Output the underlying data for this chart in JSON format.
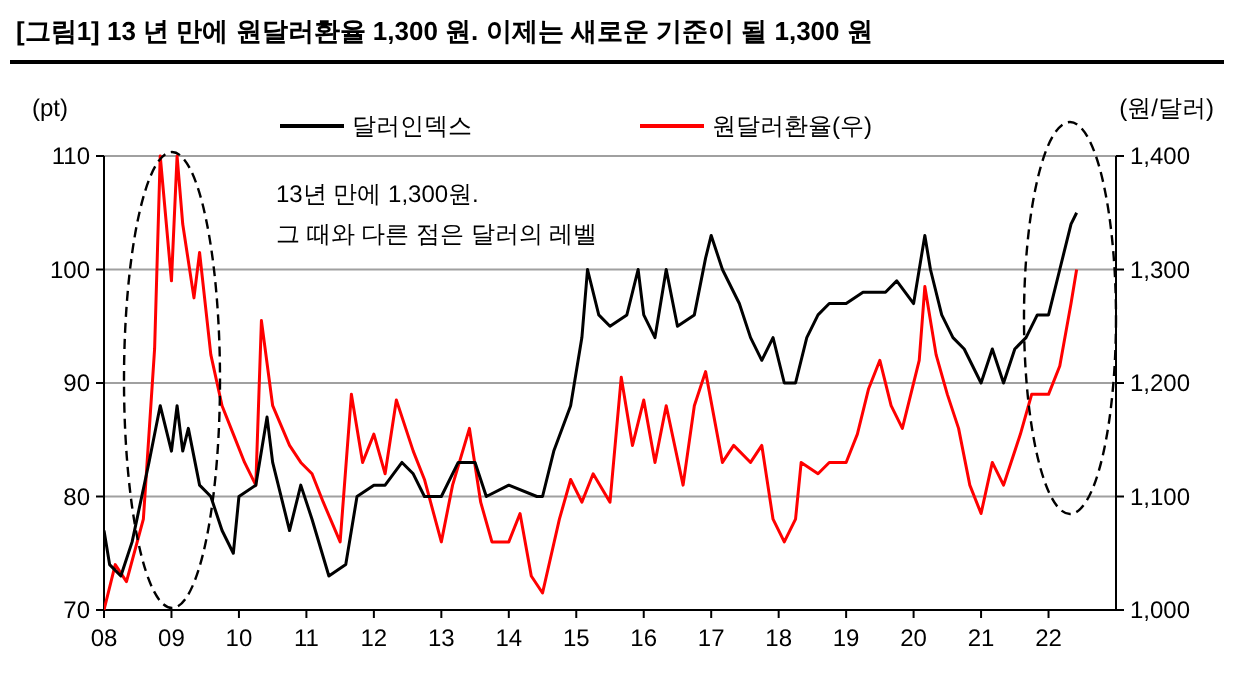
{
  "chart_data": {
    "type": "line",
    "title": "[그림1] 13 년 만에 원달러환율 1,300 원. 이제는 새로운 기준이 될 1,300 원",
    "ylabel": "(pt)",
    "y2label": "(원/달러)",
    "annotations": [
      "13년 만에 1,300원.\n그 때와 다른 점은 달러의 레벨"
    ],
    "xlim": [
      "2008-01",
      "2023-01"
    ],
    "xticks": [
      {
        "value": "2008-01",
        "label": "08"
      },
      {
        "value": "2009-01",
        "label": "09"
      },
      {
        "value": "2010-01",
        "label": "10"
      },
      {
        "value": "2011-01",
        "label": "11"
      },
      {
        "value": "2012-01",
        "label": "12"
      },
      {
        "value": "2013-01",
        "label": "13"
      },
      {
        "value": "2014-01",
        "label": "14"
      },
      {
        "value": "2015-01",
        "label": "15"
      },
      {
        "value": "2016-01",
        "label": "16"
      },
      {
        "value": "2017-01",
        "label": "17"
      },
      {
        "value": "2018-01",
        "label": "18"
      },
      {
        "value": "2019-01",
        "label": "19"
      },
      {
        "value": "2020-01",
        "label": "20"
      },
      {
        "value": "2021-01",
        "label": "21"
      },
      {
        "value": "2022-01",
        "label": "22"
      }
    ],
    "ylim": [
      70,
      110
    ],
    "yticks": [
      70,
      80,
      90,
      100,
      110
    ],
    "y2lim": [
      1000,
      1400
    ],
    "y2ticks": [
      {
        "value": 1000,
        "label": "1,000"
      },
      {
        "value": 1100,
        "label": "1,100"
      },
      {
        "value": 1200,
        "label": "1,200"
      },
      {
        "value": 1300,
        "label": "1,300"
      },
      {
        "value": 1400,
        "label": "1,400"
      }
    ],
    "grid": "y",
    "legend": "top",
    "line_style": "solid",
    "series": [
      {
        "name": "달러인덱스",
        "color": "#000000",
        "x": [
          "2008-01",
          "2008-02",
          "2008-04",
          "2008-06",
          "2008-09",
          "2008-11",
          "2009-01",
          "2009-02",
          "2009-03",
          "2009-04",
          "2009-06",
          "2009-08",
          "2009-10",
          "2009-12",
          "2010-01",
          "2010-04",
          "2010-06",
          "2010-07",
          "2010-10",
          "2010-12",
          "2011-02",
          "2011-05",
          "2011-08",
          "2011-10",
          "2012-01",
          "2012-03",
          "2012-06",
          "2012-08",
          "2012-10",
          "2013-01",
          "2013-04",
          "2013-07",
          "2013-09",
          "2014-01",
          "2014-06",
          "2014-07",
          "2014-09",
          "2014-12",
          "2015-02",
          "2015-03",
          "2015-05",
          "2015-07",
          "2015-10",
          "2015-12",
          "2016-01",
          "2016-03",
          "2016-05",
          "2016-07",
          "2016-10",
          "2016-12",
          "2017-01",
          "2017-03",
          "2017-06",
          "2017-08",
          "2017-10",
          "2017-12",
          "2018-02",
          "2018-04",
          "2018-06",
          "2018-08",
          "2018-10",
          "2019-01",
          "2019-04",
          "2019-08",
          "2019-10",
          "2020-01",
          "2020-03",
          "2020-04",
          "2020-06",
          "2020-08",
          "2020-10",
          "2021-01",
          "2021-03",
          "2021-05",
          "2021-07",
          "2021-09",
          "2021-11",
          "2022-01",
          "2022-03",
          "2022-05",
          "2022-06"
        ],
        "values": [
          77,
          74,
          73,
          76,
          83,
          88,
          84,
          88,
          84,
          86,
          81,
          80,
          77,
          75,
          80,
          81,
          87,
          83,
          77,
          81,
          78,
          73,
          74,
          80,
          81,
          81,
          83,
          82,
          80,
          80,
          83,
          83,
          80,
          81,
          80,
          80,
          84,
          88,
          94,
          100,
          96,
          95,
          96,
          100,
          96,
          94,
          100,
          95,
          96,
          101,
          103,
          100,
          97,
          94,
          92,
          94,
          90,
          90,
          94,
          96,
          97,
          97,
          98,
          98,
          99,
          97,
          103,
          100,
          96,
          94,
          93,
          90,
          93,
          90,
          93,
          94,
          96,
          96,
          100,
          104,
          105
        ]
      },
      {
        "name": "원달러환율(우)",
        "color": "#ff0000",
        "axis": "y2",
        "x": [
          "2008-01",
          "2008-03",
          "2008-05",
          "2008-08",
          "2008-10",
          "2008-11",
          "2009-01",
          "2009-02",
          "2009-03",
          "2009-05",
          "2009-06",
          "2009-08",
          "2009-10",
          "2009-12",
          "2010-02",
          "2010-04",
          "2010-05",
          "2010-07",
          "2010-10",
          "2010-12",
          "2011-02",
          "2011-04",
          "2011-07",
          "2011-09",
          "2011-11",
          "2012-01",
          "2012-03",
          "2012-05",
          "2012-08",
          "2012-10",
          "2013-01",
          "2013-03",
          "2013-06",
          "2013-08",
          "2013-10",
          "2014-01",
          "2014-03",
          "2014-05",
          "2014-07",
          "2014-10",
          "2014-12",
          "2015-02",
          "2015-04",
          "2015-07",
          "2015-09",
          "2015-11",
          "2016-01",
          "2016-03",
          "2016-05",
          "2016-08",
          "2016-10",
          "2016-12",
          "2017-03",
          "2017-05",
          "2017-08",
          "2017-10",
          "2017-12",
          "2018-02",
          "2018-04",
          "2018-05",
          "2018-08",
          "2018-10",
          "2019-01",
          "2019-03",
          "2019-05",
          "2019-07",
          "2019-09",
          "2019-11",
          "2020-02",
          "2020-03",
          "2020-05",
          "2020-07",
          "2020-09",
          "2020-11",
          "2021-01",
          "2021-03",
          "2021-05",
          "2021-08",
          "2021-10",
          "2022-01",
          "2022-03",
          "2022-05",
          "2022-06"
        ],
        "values": [
          1000,
          1040,
          1025,
          1080,
          1230,
          1400,
          1290,
          1400,
          1340,
          1275,
          1315,
          1225,
          1180,
          1155,
          1130,
          1110,
          1255,
          1180,
          1145,
          1130,
          1120,
          1095,
          1060,
          1190,
          1130,
          1155,
          1120,
          1185,
          1140,
          1115,
          1060,
          1110,
          1160,
          1095,
          1060,
          1060,
          1085,
          1030,
          1015,
          1080,
          1115,
          1095,
          1120,
          1095,
          1205,
          1145,
          1185,
          1130,
          1180,
          1110,
          1180,
          1210,
          1130,
          1145,
          1130,
          1145,
          1080,
          1060,
          1080,
          1130,
          1120,
          1130,
          1130,
          1155,
          1195,
          1220,
          1180,
          1160,
          1220,
          1285,
          1225,
          1190,
          1160,
          1110,
          1085,
          1130,
          1110,
          1155,
          1190,
          1190,
          1215,
          1270,
          1300
        ]
      }
    ]
  }
}
